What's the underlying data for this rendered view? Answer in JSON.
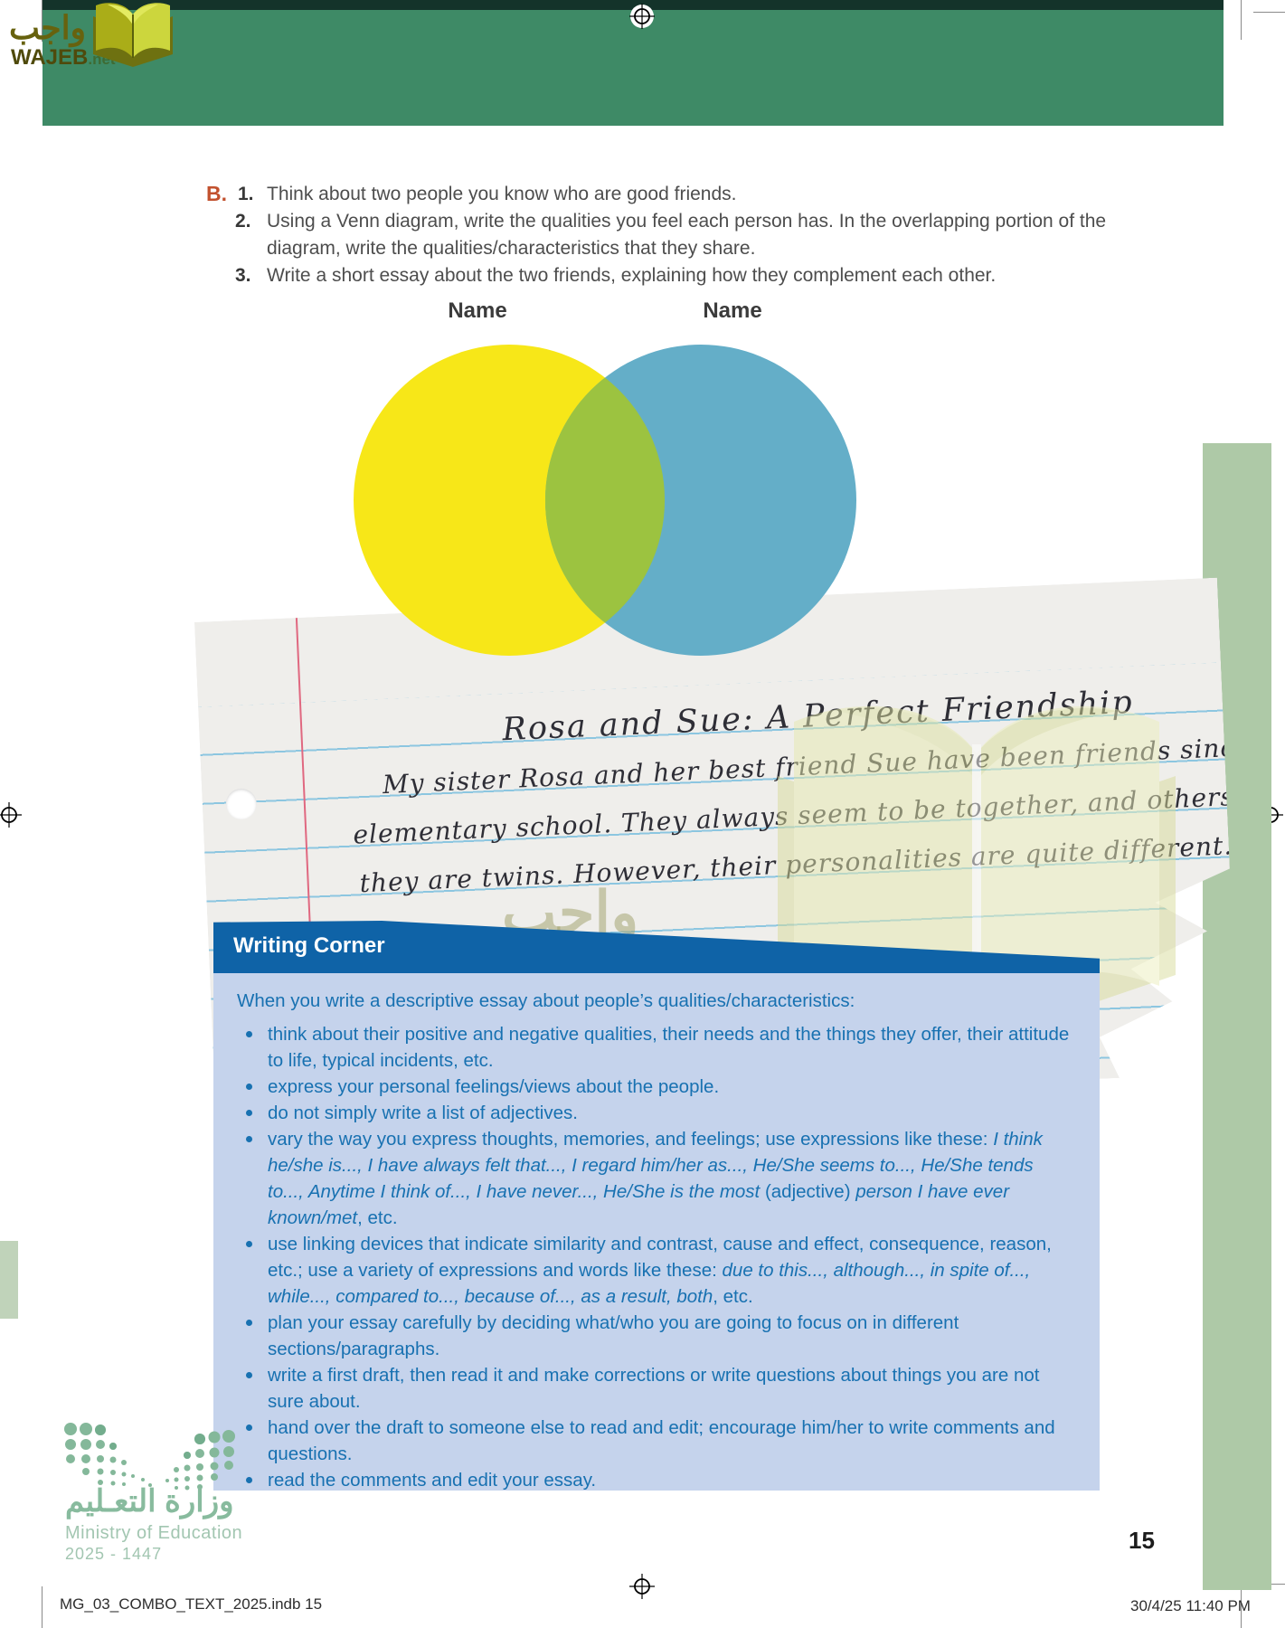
{
  "page": {
    "header": {
      "band_color": "#3e8a66",
      "bar_color": "#14332a"
    },
    "wajeb_logo": {
      "arabic": "واجب",
      "latin": "WAJEB",
      "tld": ".net"
    },
    "page_number": "15",
    "footer": {
      "left": "MG_03_COMBO_TEXT_2025.indb   15",
      "right": "30/4/25   11:40 PM"
    }
  },
  "task": {
    "letter": "B.",
    "items": [
      {
        "num": "1.",
        "lines": [
          "Think about two people you know who are good friends."
        ]
      },
      {
        "num": "2.",
        "lines": [
          "Using a Venn diagram, write the qualities you feel each person has. In the overlapping portion of the",
          "diagram, write the qualities/characteristics that they share."
        ]
      },
      {
        "num": "3.",
        "lines": [
          "Write a short essay about the two friends, explaining how they complement each other."
        ]
      }
    ]
  },
  "venn": {
    "left_label": "Name",
    "right_label": "Name",
    "left_color": "#f7e718",
    "right_color": "#64aec8",
    "overlap_color": "#9cc340"
  },
  "note": {
    "title": "Rosa and Sue: A Perfect Friendship",
    "lines": [
      "My sister Rosa and her best friend Sue have been friends since",
      "elementary school. They always seem to be together, and others joke that",
      "they are twins. However, their personalities are quite different..."
    ]
  },
  "watermark": {
    "arabic": "واجب",
    "latin": "WAJEB",
    "tld": ".net"
  },
  "writing_corner": {
    "title": "Writing Corner",
    "intro": "When you write a descriptive essay about people’s qualities/characteristics:",
    "accent_color": "#0f63a7",
    "panel_color": "#c5d3ec",
    "text_color": "#1871b1",
    "bullets": [
      [
        {
          "t": "think about their positive and negative qualities, their needs and the things they offer, their attitude to life, typical incidents, etc."
        }
      ],
      [
        {
          "t": "express your personal feelings/views about the people."
        }
      ],
      [
        {
          "t": "do not simply write a list of adjectives."
        }
      ],
      [
        {
          "t": "vary the way you express thoughts, memories, and feelings; use expressions like these: "
        },
        {
          "t": "I think he/she is..., I have always felt that..., I regard him/her as..., He/She seems to..., He/She tends to..., Anytime I think of..., I have never..., He/She is the most ",
          "i": true
        },
        {
          "t": "(adjective) "
        },
        {
          "t": "person I have ever known/met",
          "i": true
        },
        {
          "t": ", etc."
        }
      ],
      [
        {
          "t": "use linking devices that indicate similarity and contrast, cause and effect, consequence, reason, etc.; use a variety of expressions and words like these: "
        },
        {
          "t": "due to this..., although..., in spite of..., while..., compared to..., because of..., as a result, both",
          "i": true
        },
        {
          "t": ", etc."
        }
      ],
      [
        {
          "t": "plan your essay carefully by deciding what/who you are going to focus on in different sections/paragraphs."
        }
      ],
      [
        {
          "t": "write a first draft, then read it and make corrections or write questions about things you are not sure about."
        }
      ],
      [
        {
          "t": "hand over the draft to someone else to read and edit; encourage him/her to write comments and questions."
        }
      ],
      [
        {
          "t": "read the comments and edit your essay."
        }
      ]
    ]
  },
  "ministry": {
    "arabic": "وزارة التعـليم",
    "name_en": "Ministry of Education",
    "years": "2025 - 1447"
  }
}
